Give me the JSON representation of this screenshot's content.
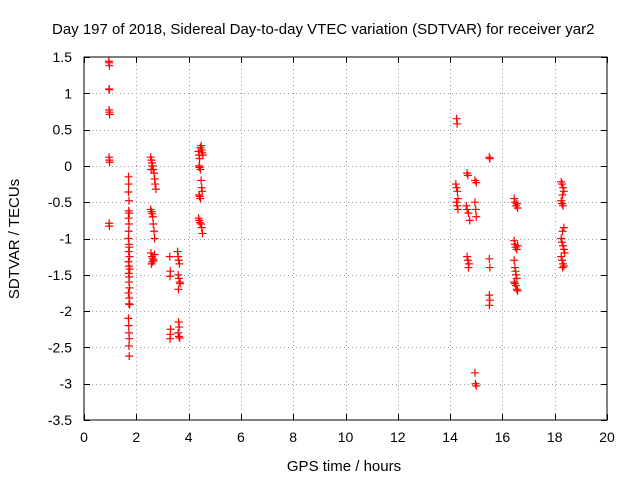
{
  "chart_data": {
    "type": "scatter",
    "title": "Day 197 of 2018, Sidereal Day-to-day VTEC variation (SDTVAR) for receiver yar2",
    "xlabel": "GPS time / hours",
    "ylabel": "SDTVAR / TECUs",
    "xlim": [
      0,
      20
    ],
    "ylim": [
      -3.5,
      1.5
    ],
    "x_ticks": [
      0,
      2,
      4,
      6,
      8,
      10,
      12,
      14,
      16,
      18,
      20
    ],
    "x_tick_labels": [
      "0",
      "2",
      "4",
      "6",
      "8",
      "10",
      "12",
      "14",
      "16",
      "18",
      "20"
    ],
    "y_ticks": [
      1.5,
      1,
      0.5,
      0,
      -0.5,
      -1,
      -1.5,
      -2,
      -2.5,
      -3,
      -3.5
    ],
    "y_tick_labels": [
      "1.5",
      "1",
      "0.5",
      "0",
      "-0.5",
      "-1",
      "-1.5",
      "-2",
      "-2.5",
      "-3",
      "-3.5"
    ],
    "grid": true,
    "marker": "plus",
    "color": "#ff0000",
    "series": [
      {
        "name": "yar2",
        "points": [
          [
            0.95,
            1.44
          ],
          [
            0.96,
            1.42
          ],
          [
            0.97,
            1.38
          ],
          [
            0.96,
            1.06
          ],
          [
            0.97,
            1.05
          ],
          [
            0.96,
            0.77
          ],
          [
            0.97,
            0.74
          ],
          [
            0.98,
            0.71
          ],
          [
            0.96,
            0.12
          ],
          [
            0.97,
            0.08
          ],
          [
            0.98,
            0.05
          ],
          [
            0.96,
            -0.79
          ],
          [
            0.97,
            -0.83
          ],
          [
            1.7,
            -0.15
          ],
          [
            1.71,
            -0.25
          ],
          [
            1.7,
            -0.36
          ],
          [
            1.72,
            -0.48
          ],
          [
            1.71,
            -0.62
          ],
          [
            1.73,
            -0.65
          ],
          [
            1.7,
            -0.72
          ],
          [
            1.72,
            -0.8
          ],
          [
            1.71,
            -0.9
          ],
          [
            1.7,
            -1.0
          ],
          [
            1.72,
            -1.08
          ],
          [
            1.73,
            -1.12
          ],
          [
            1.71,
            -1.18
          ],
          [
            1.74,
            -1.25
          ],
          [
            1.7,
            -1.32
          ],
          [
            1.72,
            -1.38
          ],
          [
            1.75,
            -1.42
          ],
          [
            1.71,
            -1.48
          ],
          [
            1.73,
            -1.53
          ],
          [
            1.72,
            -1.6
          ],
          [
            1.74,
            -1.68
          ],
          [
            1.7,
            -1.75
          ],
          [
            1.73,
            -1.82
          ],
          [
            1.72,
            -1.9
          ],
          [
            1.75,
            -1.91
          ],
          [
            1.7,
            -2.1
          ],
          [
            1.71,
            -2.2
          ],
          [
            1.72,
            -2.3
          ],
          [
            1.73,
            -2.38
          ],
          [
            1.72,
            -2.48
          ],
          [
            1.73,
            -2.62
          ],
          [
            2.55,
            0.12
          ],
          [
            2.58,
            0.08
          ],
          [
            2.6,
            0.04
          ],
          [
            2.62,
            0.0
          ],
          [
            2.65,
            -0.05
          ],
          [
            2.68,
            -0.1
          ],
          [
            2.7,
            -0.18
          ],
          [
            2.72,
            -0.25
          ],
          [
            2.75,
            -0.32
          ],
          [
            2.57,
            -0.05
          ],
          [
            2.55,
            -0.6
          ],
          [
            2.58,
            -0.63
          ],
          [
            2.6,
            -0.66
          ],
          [
            2.63,
            -0.7
          ],
          [
            2.65,
            -0.8
          ],
          [
            2.68,
            -0.9
          ],
          [
            2.7,
            -1.0
          ],
          [
            2.56,
            -1.2
          ],
          [
            2.6,
            -1.25
          ],
          [
            2.63,
            -1.28
          ],
          [
            2.66,
            -1.3
          ],
          [
            2.7,
            -1.22
          ],
          [
            2.58,
            -1.35
          ],
          [
            2.62,
            -1.32
          ],
          [
            3.28,
            -1.25
          ],
          [
            3.3,
            -1.45
          ],
          [
            3.29,
            -1.52
          ],
          [
            3.31,
            -2.25
          ],
          [
            3.3,
            -2.32
          ],
          [
            3.29,
            -2.38
          ],
          [
            3.58,
            -1.18
          ],
          [
            3.6,
            -1.25
          ],
          [
            3.62,
            -1.3
          ],
          [
            3.65,
            -1.35
          ],
          [
            3.6,
            -1.5
          ],
          [
            3.63,
            -1.55
          ],
          [
            3.66,
            -1.6
          ],
          [
            3.68,
            -1.62
          ],
          [
            3.61,
            -1.7
          ],
          [
            3.62,
            -2.15
          ],
          [
            3.64,
            -2.22
          ],
          [
            3.6,
            -2.3
          ],
          [
            3.63,
            -2.35
          ],
          [
            3.66,
            -2.37
          ],
          [
            4.38,
            0.2
          ],
          [
            4.4,
            0.15
          ],
          [
            4.42,
            0.1
          ],
          [
            4.45,
            0.25
          ],
          [
            4.48,
            0.28
          ],
          [
            4.5,
            0.22
          ],
          [
            4.52,
            0.18
          ],
          [
            4.55,
            0.15
          ],
          [
            4.4,
            0.0
          ],
          [
            4.42,
            -0.02
          ],
          [
            4.45,
            -0.05
          ],
          [
            4.48,
            -0.2
          ],
          [
            4.5,
            -0.3
          ],
          [
            4.52,
            -0.35
          ],
          [
            4.4,
            -0.4
          ],
          [
            4.42,
            -0.42
          ],
          [
            4.45,
            -0.45
          ],
          [
            4.38,
            -0.72
          ],
          [
            4.4,
            -0.75
          ],
          [
            4.43,
            -0.78
          ],
          [
            4.47,
            -0.8
          ],
          [
            4.5,
            -0.85
          ],
          [
            4.53,
            -0.93
          ],
          [
            14.25,
            0.65
          ],
          [
            14.27,
            0.58
          ],
          [
            14.22,
            -0.25
          ],
          [
            14.25,
            -0.3
          ],
          [
            14.28,
            -0.35
          ],
          [
            14.3,
            -0.45
          ],
          [
            14.24,
            -0.5
          ],
          [
            14.27,
            -0.55
          ],
          [
            14.3,
            -0.6
          ],
          [
            14.65,
            -0.1
          ],
          [
            14.68,
            -0.13
          ],
          [
            14.62,
            -0.55
          ],
          [
            14.65,
            -0.6
          ],
          [
            14.7,
            -0.65
          ],
          [
            14.75,
            -0.75
          ],
          [
            14.65,
            -1.25
          ],
          [
            14.68,
            -1.3
          ],
          [
            14.72,
            -1.35
          ],
          [
            14.7,
            -1.4
          ],
          [
            14.95,
            -0.2
          ],
          [
            15.0,
            -0.23
          ],
          [
            14.95,
            -0.5
          ],
          [
            14.98,
            -0.6
          ],
          [
            15.0,
            -0.7
          ],
          [
            14.95,
            -2.85
          ],
          [
            14.97,
            -3.0
          ],
          [
            15.0,
            -3.03
          ],
          [
            15.5,
            0.12
          ],
          [
            15.52,
            0.1
          ],
          [
            15.5,
            -1.28
          ],
          [
            15.52,
            -1.4
          ],
          [
            15.5,
            -1.78
          ],
          [
            15.52,
            -1.85
          ],
          [
            15.5,
            -1.92
          ],
          [
            16.45,
            -0.45
          ],
          [
            16.48,
            -0.5
          ],
          [
            16.52,
            -0.55
          ],
          [
            16.55,
            -0.52
          ],
          [
            16.58,
            -0.58
          ],
          [
            16.45,
            -1.03
          ],
          [
            16.48,
            -1.08
          ],
          [
            16.5,
            -1.12
          ],
          [
            16.55,
            -1.15
          ],
          [
            16.58,
            -1.1
          ],
          [
            16.45,
            -1.3
          ],
          [
            16.48,
            -1.4
          ],
          [
            16.5,
            -1.45
          ],
          [
            16.52,
            -1.5
          ],
          [
            16.55,
            -1.55
          ],
          [
            16.45,
            -1.6
          ],
          [
            16.48,
            -1.62
          ],
          [
            16.52,
            -1.65
          ],
          [
            16.55,
            -1.7
          ],
          [
            16.58,
            -1.72
          ],
          [
            18.25,
            -0.22
          ],
          [
            18.28,
            -0.25
          ],
          [
            18.32,
            -0.3
          ],
          [
            18.35,
            -0.35
          ],
          [
            18.3,
            -0.4
          ],
          [
            18.25,
            -0.48
          ],
          [
            18.28,
            -0.52
          ],
          [
            18.32,
            -0.55
          ],
          [
            18.35,
            -0.85
          ],
          [
            18.3,
            -0.9
          ],
          [
            18.25,
            -1.0
          ],
          [
            18.28,
            -1.05
          ],
          [
            18.32,
            -1.1
          ],
          [
            18.35,
            -1.15
          ],
          [
            18.38,
            -1.2
          ],
          [
            18.25,
            -1.25
          ],
          [
            18.28,
            -1.3
          ],
          [
            18.32,
            -1.35
          ],
          [
            18.35,
            -1.38
          ],
          [
            18.3,
            -1.4
          ]
        ]
      }
    ]
  }
}
